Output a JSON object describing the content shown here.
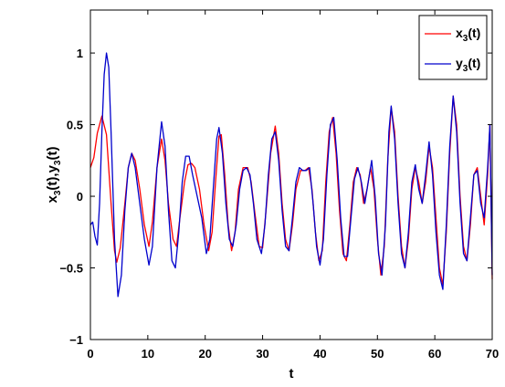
{
  "chart_data": {
    "type": "line",
    "xlabel": "t",
    "ylabel": {
      "main": "x",
      "sub": "3",
      "rest": "(t),y",
      "sub2": "3",
      "tail": "(t)"
    },
    "xlim": [
      0,
      70
    ],
    "ylim": [
      -1,
      1.3
    ],
    "xticks": [
      0,
      10,
      20,
      30,
      40,
      50,
      60,
      70
    ],
    "yticks": [
      -1,
      -0.5,
      0,
      0.5,
      1
    ],
    "xtick_labels": [
      "0",
      "10",
      "20",
      "30",
      "40",
      "50",
      "60",
      "70"
    ],
    "ytick_labels": [
      "−1",
      "−0.5",
      "0",
      "0.5",
      "1"
    ],
    "grid": false,
    "legend_position": "top-right",
    "series": [
      {
        "name": "x3(t)",
        "legend": {
          "main": "x",
          "sub": "3",
          "tail": "(t)"
        },
        "color": "#ff0000",
        "points": [
          [
            0,
            0.2
          ],
          [
            0.6,
            0.27
          ],
          [
            1.2,
            0.44
          ],
          [
            2,
            0.56
          ],
          [
            2.8,
            0.43
          ],
          [
            3.6,
            -0.05
          ],
          [
            4.2,
            -0.38
          ],
          [
            4.6,
            -0.46
          ],
          [
            5.2,
            -0.36
          ],
          [
            6,
            -0.05
          ],
          [
            6.6,
            0.2
          ],
          [
            7.2,
            0.3
          ],
          [
            7.8,
            0.25
          ],
          [
            8.6,
            0.05
          ],
          [
            9.4,
            -0.2
          ],
          [
            10.2,
            -0.35
          ],
          [
            10.8,
            -0.18
          ],
          [
            11.6,
            0.2
          ],
          [
            12.4,
            0.4
          ],
          [
            13,
            0.25
          ],
          [
            13.6,
            -0.05
          ],
          [
            14.4,
            -0.3
          ],
          [
            15,
            -0.35
          ],
          [
            15.6,
            -0.15
          ],
          [
            16.4,
            0.1
          ],
          [
            17,
            0.22
          ],
          [
            17.6,
            0.23
          ],
          [
            18.2,
            0.2
          ],
          [
            19,
            0.05
          ],
          [
            19.8,
            -0.2
          ],
          [
            20.6,
            -0.38
          ],
          [
            21.2,
            -0.25
          ],
          [
            21.8,
            0.1
          ],
          [
            22.4,
            0.42
          ],
          [
            22.8,
            0.43
          ],
          [
            23.4,
            0.15
          ],
          [
            24,
            -0.2
          ],
          [
            24.6,
            -0.38
          ],
          [
            25.2,
            -0.25
          ],
          [
            25.8,
            0.05
          ],
          [
            26.6,
            0.2
          ],
          [
            27.4,
            0.2
          ],
          [
            28,
            0.1
          ],
          [
            28.6,
            -0.1
          ],
          [
            29.4,
            -0.35
          ],
          [
            30,
            -0.36
          ],
          [
            30.6,
            -0.1
          ],
          [
            31.4,
            0.3
          ],
          [
            32.2,
            0.49
          ],
          [
            32.8,
            0.3
          ],
          [
            33.4,
            -0.05
          ],
          [
            34,
            -0.3
          ],
          [
            34.6,
            -0.38
          ],
          [
            35.2,
            -0.2
          ],
          [
            35.8,
            0.05
          ],
          [
            36.6,
            0.18
          ],
          [
            37.4,
            0.18
          ],
          [
            38,
            0.2
          ],
          [
            38.6,
            0.05
          ],
          [
            39.2,
            -0.25
          ],
          [
            39.8,
            -0.45
          ],
          [
            40.4,
            -0.38
          ],
          [
            41,
            0.1
          ],
          [
            41.6,
            0.45
          ],
          [
            42.2,
            0.55
          ],
          [
            42.8,
            0.3
          ],
          [
            43.4,
            -0.1
          ],
          [
            44,
            -0.4
          ],
          [
            44.6,
            -0.45
          ],
          [
            45.2,
            -0.2
          ],
          [
            45.8,
            0.1
          ],
          [
            46.4,
            0.2
          ],
          [
            47,
            0.15
          ],
          [
            47.6,
            -0.05
          ],
          [
            48.2,
            0.05
          ],
          [
            48.8,
            0.2
          ],
          [
            49.4,
            0.05
          ],
          [
            50,
            -0.3
          ],
          [
            50.6,
            -0.55
          ],
          [
            51.2,
            -0.35
          ],
          [
            51.8,
            0.25
          ],
          [
            52.4,
            0.62
          ],
          [
            53,
            0.45
          ],
          [
            53.6,
            0
          ],
          [
            54.2,
            -0.35
          ],
          [
            54.8,
            -0.5
          ],
          [
            55.4,
            -0.3
          ],
          [
            56,
            0.05
          ],
          [
            56.6,
            0.2
          ],
          [
            57.2,
            0.1
          ],
          [
            57.8,
            -0.05
          ],
          [
            58.4,
            0.1
          ],
          [
            59,
            0.35
          ],
          [
            59.6,
            0.2
          ],
          [
            60.2,
            -0.15
          ],
          [
            60.8,
            -0.5
          ],
          [
            61.4,
            -0.62
          ],
          [
            62,
            -0.25
          ],
          [
            62.6,
            0.3
          ],
          [
            63.2,
            0.7
          ],
          [
            63.8,
            0.5
          ],
          [
            64.4,
            0
          ],
          [
            65,
            -0.35
          ],
          [
            65.6,
            -0.45
          ],
          [
            66.2,
            -0.2
          ],
          [
            66.8,
            0.15
          ],
          [
            67.4,
            0.2
          ],
          [
            68,
            0
          ],
          [
            68.6,
            -0.2
          ],
          [
            69.2,
            0.15
          ],
          [
            69.6,
            0.5
          ],
          [
            70,
            -0.58
          ]
        ]
      },
      {
        "name": "y3(t)",
        "legend": {
          "main": "y",
          "sub": "3",
          "tail": "(t)"
        },
        "color": "#0000cc",
        "points": [
          [
            0,
            -0.2
          ],
          [
            0.4,
            -0.18
          ],
          [
            0.8,
            -0.28
          ],
          [
            1.2,
            -0.34
          ],
          [
            1.6,
            -0.05
          ],
          [
            2,
            0.45
          ],
          [
            2.4,
            0.85
          ],
          [
            2.8,
            1.0
          ],
          [
            3.2,
            0.9
          ],
          [
            3.6,
            0.45
          ],
          [
            4.2,
            -0.3
          ],
          [
            4.8,
            -0.7
          ],
          [
            5.4,
            -0.55
          ],
          [
            6,
            -0.1
          ],
          [
            6.6,
            0.2
          ],
          [
            7.2,
            0.3
          ],
          [
            7.8,
            0.2
          ],
          [
            8.6,
            -0.05
          ],
          [
            9.4,
            -0.3
          ],
          [
            10.2,
            -0.48
          ],
          [
            10.8,
            -0.35
          ],
          [
            11.6,
            0.2
          ],
          [
            12.4,
            0.52
          ],
          [
            13,
            0.35
          ],
          [
            13.6,
            -0.1
          ],
          [
            14.2,
            -0.45
          ],
          [
            14.8,
            -0.5
          ],
          [
            15.4,
            -0.25
          ],
          [
            16,
            0.1
          ],
          [
            16.6,
            0.28
          ],
          [
            17.2,
            0.28
          ],
          [
            17.8,
            0.15
          ],
          [
            18.6,
            0.0
          ],
          [
            19.4,
            -0.15
          ],
          [
            20.2,
            -0.4
          ],
          [
            20.8,
            -0.3
          ],
          [
            21.4,
            0.05
          ],
          [
            22,
            0.4
          ],
          [
            22.4,
            0.48
          ],
          [
            23,
            0.3
          ],
          [
            23.6,
            -0.05
          ],
          [
            24.2,
            -0.3
          ],
          [
            24.8,
            -0.35
          ],
          [
            25.4,
            -0.2
          ],
          [
            26,
            0.05
          ],
          [
            26.6,
            0.18
          ],
          [
            27.2,
            0.2
          ],
          [
            27.8,
            0.15
          ],
          [
            28.4,
            -0.05
          ],
          [
            29,
            -0.3
          ],
          [
            29.8,
            -0.4
          ],
          [
            30.4,
            -0.2
          ],
          [
            31,
            0.15
          ],
          [
            31.6,
            0.4
          ],
          [
            32.2,
            0.45
          ],
          [
            32.8,
            0.25
          ],
          [
            33.4,
            -0.1
          ],
          [
            34,
            -0.35
          ],
          [
            34.6,
            -0.38
          ],
          [
            35.2,
            -0.15
          ],
          [
            35.8,
            0.1
          ],
          [
            36.4,
            0.2
          ],
          [
            37,
            0.18
          ],
          [
            37.6,
            0.18
          ],
          [
            38.2,
            0.2
          ],
          [
            38.8,
            -0.05
          ],
          [
            39.4,
            -0.35
          ],
          [
            40,
            -0.48
          ],
          [
            40.6,
            -0.3
          ],
          [
            41.2,
            0.15
          ],
          [
            41.8,
            0.5
          ],
          [
            42.4,
            0.55
          ],
          [
            43,
            0.25
          ],
          [
            43.6,
            -0.15
          ],
          [
            44.2,
            -0.42
          ],
          [
            44.8,
            -0.42
          ],
          [
            45.4,
            -0.15
          ],
          [
            46,
            0.12
          ],
          [
            46.6,
            0.2
          ],
          [
            47.2,
            0.1
          ],
          [
            47.8,
            -0.05
          ],
          [
            48.4,
            0.1
          ],
          [
            49,
            0.25
          ],
          [
            49.6,
            0.0
          ],
          [
            50.2,
            -0.4
          ],
          [
            50.8,
            -0.55
          ],
          [
            51.4,
            -0.2
          ],
          [
            52,
            0.45
          ],
          [
            52.4,
            0.63
          ],
          [
            53,
            0.4
          ],
          [
            53.6,
            -0.05
          ],
          [
            54.2,
            -0.4
          ],
          [
            54.8,
            -0.5
          ],
          [
            55.4,
            -0.25
          ],
          [
            56,
            0.1
          ],
          [
            56.6,
            0.22
          ],
          [
            57.2,
            0.05
          ],
          [
            57.8,
            -0.05
          ],
          [
            58.4,
            0.15
          ],
          [
            59,
            0.38
          ],
          [
            59.6,
            0.15
          ],
          [
            60.2,
            -0.25
          ],
          [
            60.8,
            -0.55
          ],
          [
            61.4,
            -0.65
          ],
          [
            62,
            -0.2
          ],
          [
            62.6,
            0.35
          ],
          [
            63.2,
            0.7
          ],
          [
            63.8,
            0.45
          ],
          [
            64.4,
            -0.05
          ],
          [
            65,
            -0.4
          ],
          [
            65.6,
            -0.45
          ],
          [
            66.2,
            -0.15
          ],
          [
            66.8,
            0.15
          ],
          [
            67.4,
            0.18
          ],
          [
            68,
            -0.05
          ],
          [
            68.6,
            -0.15
          ],
          [
            69.2,
            0.2
          ],
          [
            69.6,
            0.5
          ],
          [
            70,
            -0.55
          ]
        ]
      }
    ]
  }
}
